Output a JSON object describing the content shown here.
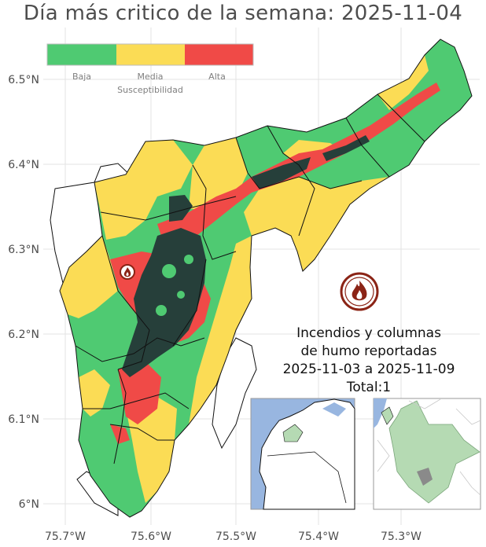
{
  "title": "Día más critico de la semana: 2025-11-04",
  "legend": {
    "title": "Susceptibilidad",
    "classes": [
      {
        "label": "Baja",
        "color": "#4fca72"
      },
      {
        "label": "Media",
        "color": "#fbdc55"
      },
      {
        "label": "Alta",
        "color": "#f04a47"
      }
    ]
  },
  "colors": {
    "forest": "#263f3a",
    "water": "#98b6e0",
    "inset_region": "#b5dab3",
    "fire_badge": "#8b2416"
  },
  "y_axis": {
    "ticks": [
      "6.5°N",
      "6.4°N",
      "6.3°N",
      "6.2°N",
      "6.1°N",
      "6°N"
    ]
  },
  "x_axis": {
    "ticks": [
      "75.7°W",
      "75.6°W",
      "75.5°W",
      "75.4°W",
      "75.3°W"
    ]
  },
  "info": {
    "line1": "Incendios y columnas",
    "line2": "de humo reportadas",
    "line3": "2025-11-03 a 2025-11-09",
    "line4": "Total:1"
  },
  "fire_icon": "fire-icon",
  "fire_marker_icon": "fire-marker-icon"
}
